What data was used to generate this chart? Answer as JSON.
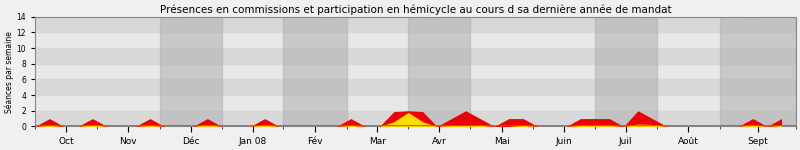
{
  "title": "Présences en commissions et participation en hémicycle au cours d sa dernière année de mandat",
  "ylabel": "Séances par semaine",
  "ylim": [
    0,
    14
  ],
  "yticks": [
    0,
    2,
    4,
    6,
    8,
    10,
    12,
    14
  ],
  "x_labels": [
    "Oct",
    "Nov",
    "Déc",
    "Jan 08",
    "Fév",
    "Mar",
    "Avr",
    "Mai",
    "Juin",
    "Juil",
    "Août",
    "Sept"
  ],
  "background_color": "#f0f0f0",
  "stripe_light": "#e8e8e8",
  "stripe_dark": "#d8d8d8",
  "gray_band_color": "#b0b0b0",
  "gray_band_alpha": 0.55,
  "gray_months": [
    2,
    4,
    6,
    9,
    11
  ],
  "red_color": "#ee0000",
  "yellow_color": "#ffdd00",
  "green_color": "#00bb00",
  "month_starts": [
    0,
    4.3,
    8.7,
    13.0,
    17.3,
    21.7,
    26.0,
    30.3,
    34.7,
    39.0,
    43.3,
    47.7,
    53.0
  ],
  "commission_data": [
    0.0,
    1.0,
    0.0,
    0.0,
    1.0,
    0.0,
    0.0,
    0.0,
    1.0,
    0.0,
    0.0,
    0.0,
    1.0,
    0.0,
    0.0,
    0.0,
    1.0,
    0.0,
    0.0,
    0.0,
    0.0,
    0.0,
    1.0,
    0.0,
    0.0,
    1.9,
    2.0,
    1.9,
    0.0,
    1.0,
    2.0,
    1.0,
    0.0,
    1.0,
    1.0,
    0.0,
    0.0,
    0.0,
    1.0,
    1.0,
    1.0,
    0.0,
    2.0,
    1.0,
    0.0,
    0.0,
    0.0,
    0.0,
    0.0,
    0.0,
    1.0,
    0.0,
    1.0
  ],
  "hemicycle_data": [
    0.0,
    0.15,
    0.0,
    0.0,
    0.25,
    0.0,
    0.0,
    0.0,
    0.15,
    0.0,
    0.0,
    0.0,
    0.25,
    0.0,
    0.0,
    0.0,
    0.25,
    0.0,
    0.0,
    0.0,
    0.0,
    0.0,
    0.15,
    0.0,
    0.0,
    0.6,
    1.8,
    0.6,
    0.0,
    0.15,
    0.15,
    0.15,
    0.0,
    0.0,
    0.15,
    0.0,
    0.0,
    0.0,
    0.15,
    0.15,
    0.15,
    0.0,
    0.3,
    0.25,
    0.0,
    0.0,
    0.0,
    0.0,
    0.0,
    0.0,
    0.25,
    0.0,
    0.15
  ],
  "num_weeks": 53,
  "title_fontsize": 7.5,
  "ylabel_fontsize": 5.5,
  "tick_fontsize": 6.5
}
